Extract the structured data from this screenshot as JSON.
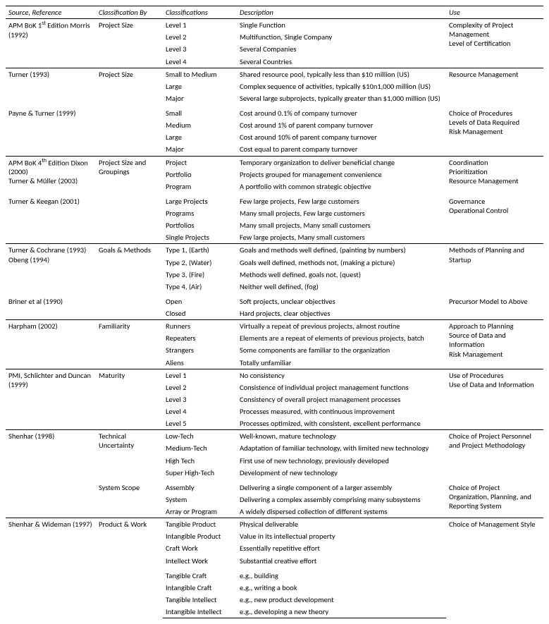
{
  "headers": [
    "Source, Reference",
    "Classification By",
    "Classifications",
    "Description",
    "Use"
  ],
  "groups": [
    {
      "subgroups": [
        {
          "source": "APM BoK 1<sup>st</sup> Edition Morris (1992)",
          "by": "Project Size",
          "use": "Complexity of Project Management<br>Level of Certification",
          "rows": [
            [
              "Level 1",
              "Single Function"
            ],
            [
              "Level 2",
              "Multifunction, Single Company"
            ],
            [
              "Level 3",
              "Several Companies"
            ],
            [
              "Level 4",
              "Several Countries"
            ]
          ]
        }
      ]
    },
    {
      "subgroups": [
        {
          "source": "Turner (1993)",
          "by": "Project Size",
          "use": "Resource Management",
          "rows": [
            [
              "Small to Medium",
              "Shared resource pool, typically less than $10 million (US)"
            ],
            [
              "Large",
              "Complex sequence of activities, typically $10n1,000 million (US)"
            ],
            [
              "Major",
              "Several large subprojects, typically greater than $1,000 million (US)"
            ]
          ]
        },
        {
          "source": "Payne & Turner (1999)",
          "by": "",
          "use": "Choice of Procedures<br>Levels of Data Required<br>Risk Management",
          "rows": [
            [
              "Small",
              "Cost around 0.1% of company turnover"
            ],
            [
              "Medium",
              "Cost around 1% of parent company turnover"
            ],
            [
              "Large",
              "Cost around 10% of parent company turnover"
            ],
            [
              "Major",
              "Cost equal to parent company turnover"
            ]
          ]
        }
      ]
    },
    {
      "subgroups": [
        {
          "source": "APM BoK 4<sup>th</sup> Edition Dixon (2000)<br>Turner & Müller (2003)",
          "by": "Project Size and Groupings",
          "use": "Coordination<br>Prioritization<br>Resource Management",
          "rows": [
            [
              "Project",
              "Temporary organization to deliver beneficial change"
            ],
            [
              "Portfolio",
              "Projects grouped for management convenience"
            ],
            [
              "Program",
              "A portfolio with common strategic objective"
            ]
          ]
        },
        {
          "source": "Turner & Keegan (2001)",
          "by": "",
          "use": "Governance<br>Operational Control",
          "rows": [
            [
              "Large Projects",
              "Few large projects, Few large customers"
            ],
            [
              "Programs",
              "Many small projects, Few large customers"
            ],
            [
              "Portfolios",
              "Many small projects, Many small customers"
            ],
            [
              "Single Projects",
              "Few large projects, Many small customers"
            ]
          ]
        }
      ]
    },
    {
      "subgroups": [
        {
          "source": "Turner & Cochrane (1993)<br>Obeng (1994)",
          "by": "Goals & Methods",
          "use": "Methods of Planning and Startup",
          "rows": [
            [
              "Type 1, (Earth)",
              "Goals and methods well defined, (painting by numbers)"
            ],
            [
              "Type 2, (Water)",
              "Goals well defined, methods not, (making a picture)"
            ],
            [
              "Type 3, (Fire)",
              "Methods well defined, goals not, (quest)"
            ],
            [
              "Type 4, (Air)",
              "Neither well defined, (fog)"
            ]
          ]
        },
        {
          "source": "Briner et al (1990)",
          "by": "",
          "use": "Precursor Model to Above",
          "rows": [
            [
              "Open",
              "Soft projects, unclear objectives"
            ],
            [
              "Closed",
              "Hard projects, clear objectives"
            ]
          ]
        }
      ]
    },
    {
      "subgroups": [
        {
          "source": "Harpham (2002)",
          "by": "Familiarity",
          "use": "Approach to Planning<br>Source of Data and Information<br>Risk Management",
          "rows": [
            [
              "Runners",
              "Virtually a repeat of previous projects, almost routine"
            ],
            [
              "Repeaters",
              "Elements are a repeat of elements of previous projects, batch"
            ],
            [
              "Strangers",
              "Some components are familiar to the organization"
            ],
            [
              "Aliens",
              "Totally unfamiliar"
            ]
          ]
        }
      ]
    },
    {
      "subgroups": [
        {
          "source": "PMI, Schlichter and Duncan (1999)",
          "by": "Maturity",
          "use": "Use of Procedures<br>Use of Data and Information",
          "rows": [
            [
              "Level 1",
              "No consistency"
            ],
            [
              "Level 2",
              "Consistence of individual project management functions"
            ],
            [
              "Level 3",
              "Consistency of overall project management processes"
            ],
            [
              "Level 4",
              "Processes measured, with continuous improvement"
            ],
            [
              "Level 5",
              "Processes optimized, with consistent, excellent performance"
            ]
          ]
        }
      ]
    },
    {
      "subgroups": [
        {
          "source": "Shenhar (1998)",
          "by": "Technical Uncertainty",
          "use": "Choice of Project Personnel and Project Methodology",
          "rows": [
            [
              "Low-Tech",
              "Well-known, mature technology"
            ],
            [
              "Medium-Tech",
              "Adaptation of familiar technology, with limited new technology"
            ],
            [
              "High Tech",
              "First use of new technology, previously developed"
            ],
            [
              "Super High-Tech",
              "Development of new technology"
            ]
          ]
        },
        {
          "source": "",
          "by": "System Scope",
          "use": "Choice of Project Organization, Planning, and Reporting System",
          "rows": [
            [
              "Assembly",
              "Delivering a single component of a larger assembly"
            ],
            [
              "System",
              "Delivering a complex assembly comprising many subsystems"
            ],
            [
              "Array or Program",
              "A widely dispersed collection of different systems"
            ]
          ]
        }
      ]
    },
    {
      "subgroups": [
        {
          "source": "Shenhar & Wideman (1997)",
          "by": "Product & Work",
          "use": "Choice of Management Style",
          "rows": [
            [
              "Tangible Product",
              "Physical deliverable"
            ],
            [
              "Intangible Product",
              "Value in its intellectual property"
            ],
            [
              "Craft Work",
              "Essentially repetitive effort"
            ],
            [
              "Intellect Work",
              "Substantial creative effort"
            ]
          ]
        },
        {
          "source": "",
          "by": "",
          "use": "",
          "rows": [
            [
              "Tangible Craft",
              "e.g., building"
            ],
            [
              "Intangible Craft",
              "e.g., writing a book"
            ],
            [
              "Tangible Intellect",
              "e.g., new product development"
            ],
            [
              "Intangible Intellect",
              "e.g., developing a new theory"
            ]
          ]
        }
      ]
    }
  ]
}
